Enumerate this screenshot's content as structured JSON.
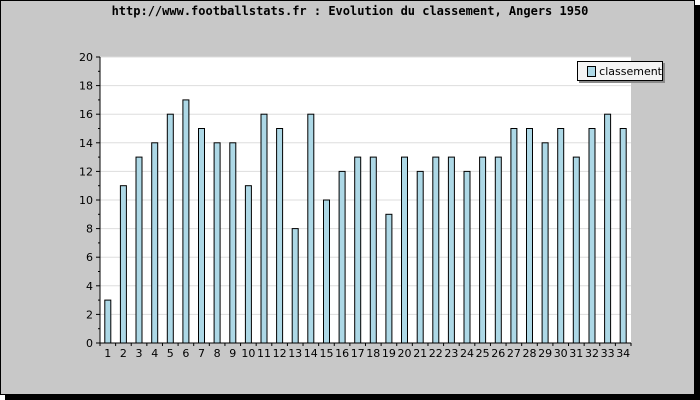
{
  "title": "http://www.footballstats.fr : Evolution du classement, Angers 1950",
  "colors": {
    "background": "#c8c8c8",
    "plot_background": "#ffffff",
    "bar_fill": "#add8e6",
    "bar_stroke": "#000000",
    "grid": "#dddddd"
  },
  "chart_data": {
    "type": "bar",
    "title": "http://www.footballstats.fr : Evolution du classement, Angers 1950",
    "xlabel": "",
    "ylabel": "",
    "categories": [
      "1",
      "2",
      "3",
      "4",
      "5",
      "6",
      "7",
      "8",
      "9",
      "10",
      "11",
      "12",
      "13",
      "14",
      "15",
      "16",
      "17",
      "18",
      "19",
      "20",
      "21",
      "22",
      "23",
      "24",
      "25",
      "26",
      "27",
      "28",
      "29",
      "30",
      "31",
      "32",
      "33",
      "34"
    ],
    "series": [
      {
        "name": "classement",
        "values": [
          3,
          11,
          13,
          14,
          16,
          17,
          15,
          14,
          14,
          11,
          16,
          15,
          8,
          16,
          10,
          12,
          13,
          13,
          9,
          13,
          12,
          13,
          13,
          12,
          13,
          13,
          15,
          15,
          14,
          15,
          13,
          15,
          16,
          15
        ]
      }
    ],
    "ylim": [
      0,
      20
    ],
    "yticks": [
      0,
      2,
      4,
      6,
      8,
      10,
      12,
      14,
      16,
      18,
      20
    ],
    "grid": true,
    "legend": "top-right"
  }
}
